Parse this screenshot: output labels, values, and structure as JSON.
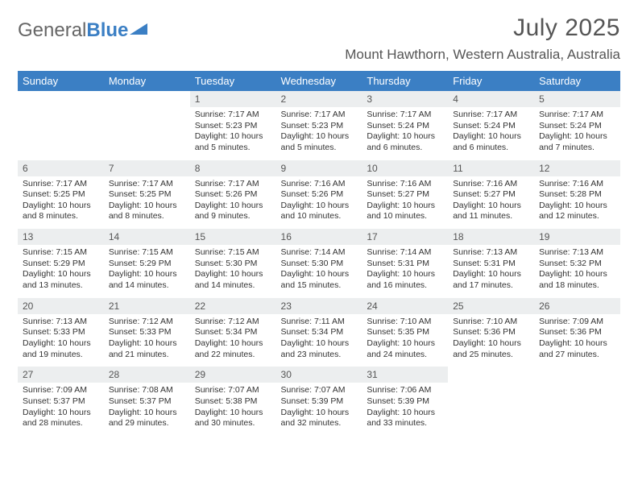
{
  "brand": {
    "part1": "General",
    "part2": "Blue"
  },
  "title": "July 2025",
  "location": "Mount Hawthorn, Western Australia, Australia",
  "colors": {
    "header_bg": "#3b7fc4",
    "header_text": "#ffffff",
    "daynum_bg": "#eceeef",
    "text": "#333333",
    "page_bg": "#ffffff"
  },
  "weekdays": [
    "Sunday",
    "Monday",
    "Tuesday",
    "Wednesday",
    "Thursday",
    "Friday",
    "Saturday"
  ],
  "layout": {
    "first_weekday_index": 2,
    "days_in_month": 31
  },
  "days": {
    "1": {
      "sunrise": "7:17 AM",
      "sunset": "5:23 PM",
      "daylight": "10 hours and 5 minutes."
    },
    "2": {
      "sunrise": "7:17 AM",
      "sunset": "5:23 PM",
      "daylight": "10 hours and 5 minutes."
    },
    "3": {
      "sunrise": "7:17 AM",
      "sunset": "5:24 PM",
      "daylight": "10 hours and 6 minutes."
    },
    "4": {
      "sunrise": "7:17 AM",
      "sunset": "5:24 PM",
      "daylight": "10 hours and 6 minutes."
    },
    "5": {
      "sunrise": "7:17 AM",
      "sunset": "5:24 PM",
      "daylight": "10 hours and 7 minutes."
    },
    "6": {
      "sunrise": "7:17 AM",
      "sunset": "5:25 PM",
      "daylight": "10 hours and 8 minutes."
    },
    "7": {
      "sunrise": "7:17 AM",
      "sunset": "5:25 PM",
      "daylight": "10 hours and 8 minutes."
    },
    "8": {
      "sunrise": "7:17 AM",
      "sunset": "5:26 PM",
      "daylight": "10 hours and 9 minutes."
    },
    "9": {
      "sunrise": "7:16 AM",
      "sunset": "5:26 PM",
      "daylight": "10 hours and 10 minutes."
    },
    "10": {
      "sunrise": "7:16 AM",
      "sunset": "5:27 PM",
      "daylight": "10 hours and 10 minutes."
    },
    "11": {
      "sunrise": "7:16 AM",
      "sunset": "5:27 PM",
      "daylight": "10 hours and 11 minutes."
    },
    "12": {
      "sunrise": "7:16 AM",
      "sunset": "5:28 PM",
      "daylight": "10 hours and 12 minutes."
    },
    "13": {
      "sunrise": "7:15 AM",
      "sunset": "5:29 PM",
      "daylight": "10 hours and 13 minutes."
    },
    "14": {
      "sunrise": "7:15 AM",
      "sunset": "5:29 PM",
      "daylight": "10 hours and 14 minutes."
    },
    "15": {
      "sunrise": "7:15 AM",
      "sunset": "5:30 PM",
      "daylight": "10 hours and 14 minutes."
    },
    "16": {
      "sunrise": "7:14 AM",
      "sunset": "5:30 PM",
      "daylight": "10 hours and 15 minutes."
    },
    "17": {
      "sunrise": "7:14 AM",
      "sunset": "5:31 PM",
      "daylight": "10 hours and 16 minutes."
    },
    "18": {
      "sunrise": "7:13 AM",
      "sunset": "5:31 PM",
      "daylight": "10 hours and 17 minutes."
    },
    "19": {
      "sunrise": "7:13 AM",
      "sunset": "5:32 PM",
      "daylight": "10 hours and 18 minutes."
    },
    "20": {
      "sunrise": "7:13 AM",
      "sunset": "5:33 PM",
      "daylight": "10 hours and 19 minutes."
    },
    "21": {
      "sunrise": "7:12 AM",
      "sunset": "5:33 PM",
      "daylight": "10 hours and 21 minutes."
    },
    "22": {
      "sunrise": "7:12 AM",
      "sunset": "5:34 PM",
      "daylight": "10 hours and 22 minutes."
    },
    "23": {
      "sunrise": "7:11 AM",
      "sunset": "5:34 PM",
      "daylight": "10 hours and 23 minutes."
    },
    "24": {
      "sunrise": "7:10 AM",
      "sunset": "5:35 PM",
      "daylight": "10 hours and 24 minutes."
    },
    "25": {
      "sunrise": "7:10 AM",
      "sunset": "5:36 PM",
      "daylight": "10 hours and 25 minutes."
    },
    "26": {
      "sunrise": "7:09 AM",
      "sunset": "5:36 PM",
      "daylight": "10 hours and 27 minutes."
    },
    "27": {
      "sunrise": "7:09 AM",
      "sunset": "5:37 PM",
      "daylight": "10 hours and 28 minutes."
    },
    "28": {
      "sunrise": "7:08 AM",
      "sunset": "5:37 PM",
      "daylight": "10 hours and 29 minutes."
    },
    "29": {
      "sunrise": "7:07 AM",
      "sunset": "5:38 PM",
      "daylight": "10 hours and 30 minutes."
    },
    "30": {
      "sunrise": "7:07 AM",
      "sunset": "5:39 PM",
      "daylight": "10 hours and 32 minutes."
    },
    "31": {
      "sunrise": "7:06 AM",
      "sunset": "5:39 PM",
      "daylight": "10 hours and 33 minutes."
    }
  },
  "labels": {
    "sunrise": "Sunrise:",
    "sunset": "Sunset:",
    "daylight": "Daylight:"
  }
}
